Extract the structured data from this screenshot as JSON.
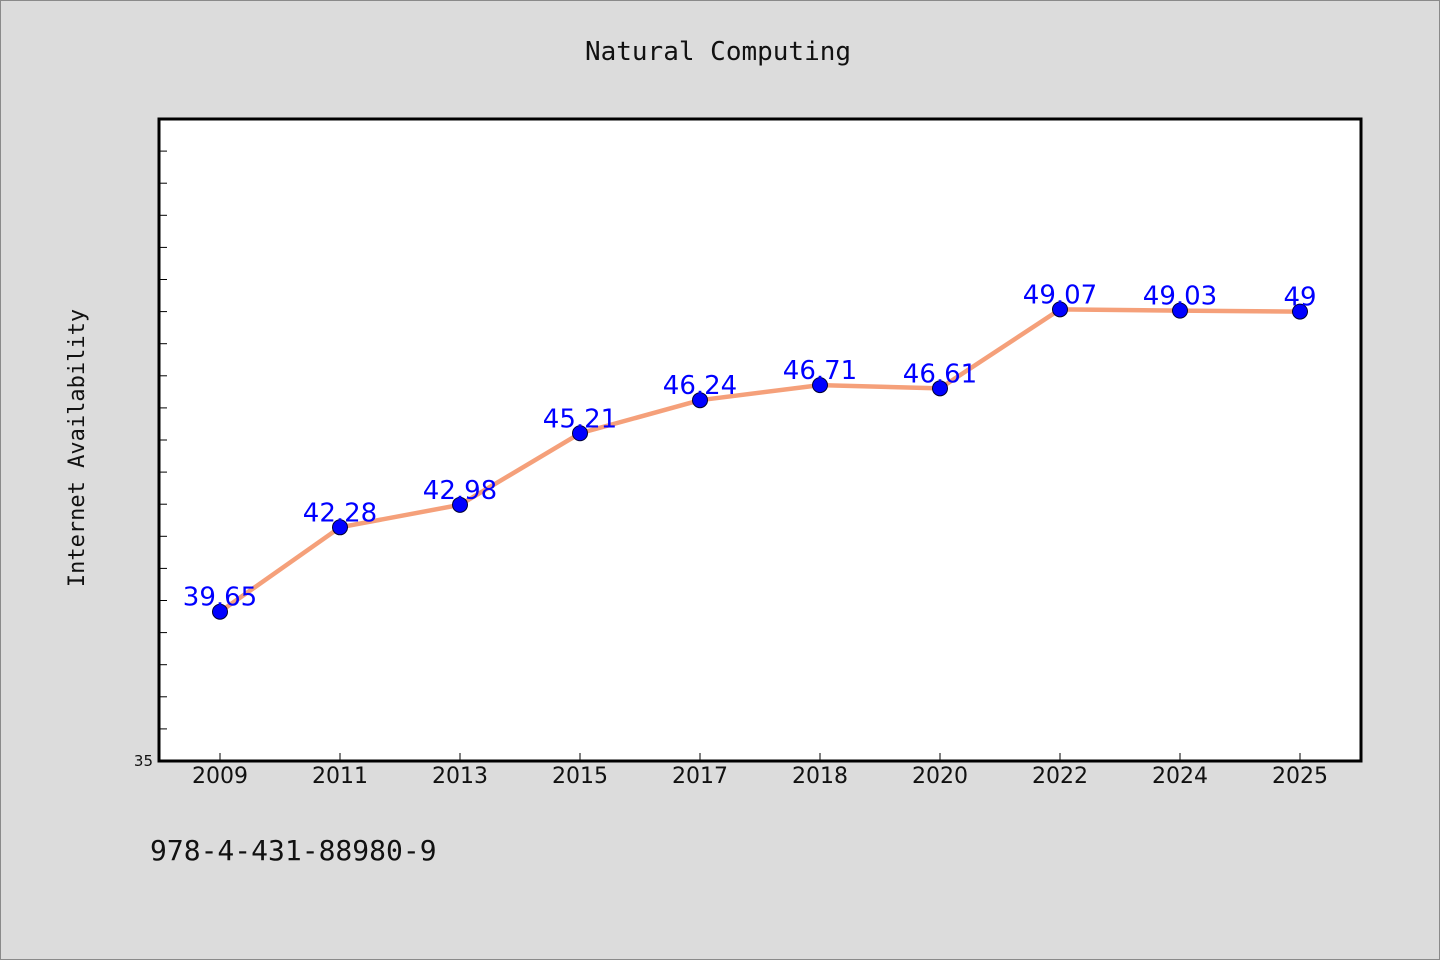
{
  "chart_data": {
    "type": "line",
    "title": "Natural Computing",
    "ylabel": "Internet Availability",
    "xlabel": "",
    "categories": [
      "2009",
      "2011",
      "2013",
      "2015",
      "2017",
      "2018",
      "2020",
      "2022",
      "2024",
      "2025"
    ],
    "series": [
      {
        "values": [
          39.65,
          42.28,
          42.98,
          45.21,
          46.24,
          46.71,
          46.61,
          49.07,
          49.03,
          49.0
        ],
        "labels": [
          "39.65",
          "42.28",
          "42.98",
          "45.21",
          "46.24",
          "46.71",
          "46.61",
          "49.07",
          "49.03",
          "49"
        ]
      }
    ],
    "ylim": [
      35,
      55
    ],
    "ytick_label": "35",
    "grid": false,
    "line_color": "#f5a07a",
    "marker_color": "#0000ff"
  },
  "footer_text": "978-4-431-88980-9"
}
